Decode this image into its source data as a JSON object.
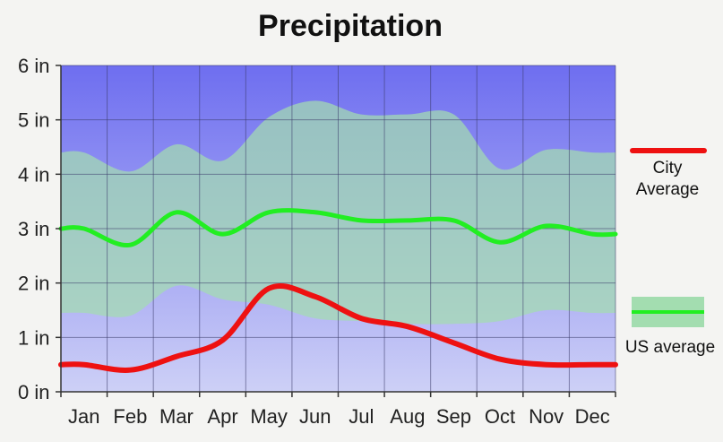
{
  "chart_data": {
    "type": "line",
    "title": "Precipitation",
    "xlabel": "",
    "ylabel": "",
    "ylim": [
      0,
      6
    ],
    "yticks": [
      0,
      1,
      2,
      3,
      4,
      5,
      6
    ],
    "ytick_labels": [
      "0 in",
      "1 in",
      "2 in",
      "3 in",
      "4 in",
      "5 in",
      "6 in"
    ],
    "categories": [
      "Jan",
      "Feb",
      "Mar",
      "Apr",
      "May",
      "Jun",
      "Jul",
      "Aug",
      "Sep",
      "Oct",
      "Nov",
      "Dec"
    ],
    "grid": true,
    "legend_position": "right",
    "series": [
      {
        "name": "City Average",
        "legend_lines": [
          "City",
          "Average"
        ],
        "color": "#ee1111",
        "values": [
          0.5,
          0.4,
          0.65,
          0.95,
          1.9,
          1.75,
          1.35,
          1.2,
          0.9,
          0.6,
          0.5,
          0.5
        ]
      },
      {
        "name": "US average",
        "legend_lines": [
          "US average"
        ],
        "color": "#22ee22",
        "band_color": "#a3ddb0",
        "values": [
          3.0,
          2.7,
          3.3,
          2.9,
          3.3,
          3.3,
          3.15,
          3.15,
          3.15,
          2.75,
          3.05,
          2.9
        ],
        "band_low": [
          1.45,
          1.4,
          1.95,
          1.7,
          1.6,
          1.35,
          1.3,
          1.25,
          1.25,
          1.3,
          1.5,
          1.45
        ],
        "band_high": [
          4.4,
          4.05,
          4.55,
          4.25,
          5.05,
          5.35,
          5.1,
          5.1,
          5.1,
          4.1,
          4.45,
          4.4
        ]
      }
    ],
    "plot_background": "#6e6ef0",
    "plot_background_light": "#cdd0f6"
  }
}
